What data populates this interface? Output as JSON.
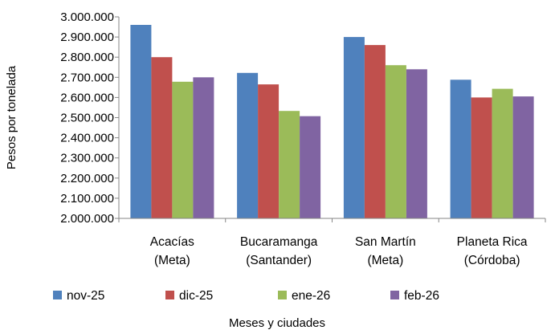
{
  "chart_data": {
    "type": "bar",
    "title": "",
    "xlabel": "Meses y ciudades",
    "ylabel": "Pesos por tonelada",
    "ylim": [
      2000000,
      3000000
    ],
    "ytick_step": 100000,
    "ytick_labels": [
      "2.000.000",
      "2.100.000",
      "2.200.000",
      "2.300.000",
      "2.400.000",
      "2.500.000",
      "2.600.000",
      "2.700.000",
      "2.800.000",
      "2.900.000",
      "3.000.000"
    ],
    "categories": [
      [
        "Acacías",
        "(Meta)"
      ],
      [
        "Bucaramanga",
        "(Santander)"
      ],
      [
        "San Martín",
        "(Meta)"
      ],
      [
        "Planeta Rica",
        "(Córdoba)"
      ]
    ],
    "series": [
      {
        "name": "nov-25",
        "color": "#4f81bd",
        "values": [
          2960000,
          2722000,
          2900000,
          2688000
        ]
      },
      {
        "name": "dic-25",
        "color": "#c0504d",
        "values": [
          2800000,
          2665000,
          2860000,
          2600000
        ]
      },
      {
        "name": "ene-26",
        "color": "#9bbb59",
        "values": [
          2678000,
          2533000,
          2760000,
          2643000
        ]
      },
      {
        "name": "feb-26",
        "color": "#8064a2",
        "values": [
          2700000,
          2507000,
          2740000,
          2605000
        ]
      }
    ],
    "grid": false,
    "legend_position": "bottom"
  }
}
